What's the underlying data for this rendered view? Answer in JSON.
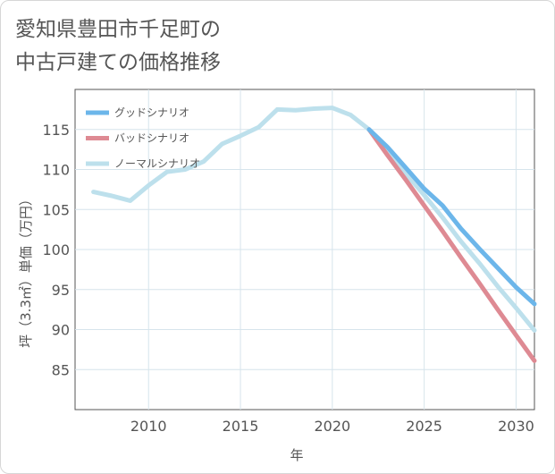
{
  "title_lines": [
    "愛知県豊田市千足町の",
    "中古戸建ての価格推移"
  ],
  "chart_data": {
    "type": "line",
    "xlabel": "年",
    "ylabel": "坪（3.3㎡）単価（万円）",
    "xlim": [
      2006,
      2031
    ],
    "ylim": [
      80,
      120
    ],
    "xticks": [
      2010,
      2015,
      2020,
      2025,
      2030
    ],
    "yticks": [
      85,
      90,
      95,
      100,
      105,
      110,
      115
    ],
    "grid": true,
    "legend_position": "top-left",
    "series": [
      {
        "name": "グッドシナリオ",
        "color": "#6cb6ea",
        "x": [
          2022,
          2023,
          2024,
          2025,
          2026,
          2027,
          2028,
          2029,
          2030,
          2031
        ],
        "values": [
          115.0,
          112.8,
          110.2,
          107.6,
          105.5,
          102.6,
          100.1,
          97.7,
          95.3,
          93.2
        ]
      },
      {
        "name": "バッドシナリオ",
        "color": "#de8a93",
        "x": [
          2022,
          2023,
          2024,
          2025,
          2026,
          2027,
          2028,
          2029,
          2030,
          2031
        ],
        "values": [
          115.0,
          111.8,
          108.7,
          105.5,
          102.3,
          99.0,
          95.8,
          92.5,
          89.3,
          86.1
        ]
      },
      {
        "name": "ノーマルシナリオ",
        "color": "#bde0ec",
        "x": [
          2007,
          2008,
          2009,
          2010,
          2011,
          2012,
          2013,
          2014,
          2015,
          2016,
          2017,
          2018,
          2019,
          2020,
          2021,
          2022,
          2023,
          2024,
          2025,
          2026,
          2027,
          2028,
          2029,
          2030,
          2031
        ],
        "values": [
          107.2,
          106.7,
          106.1,
          108.0,
          109.7,
          110.0,
          111.0,
          113.2,
          114.2,
          115.3,
          117.5,
          117.4,
          117.6,
          117.7,
          116.8,
          115.0,
          112.3,
          109.5,
          106.8,
          104.0,
          101.0,
          98.3,
          95.4,
          92.7,
          89.9
        ]
      }
    ]
  }
}
